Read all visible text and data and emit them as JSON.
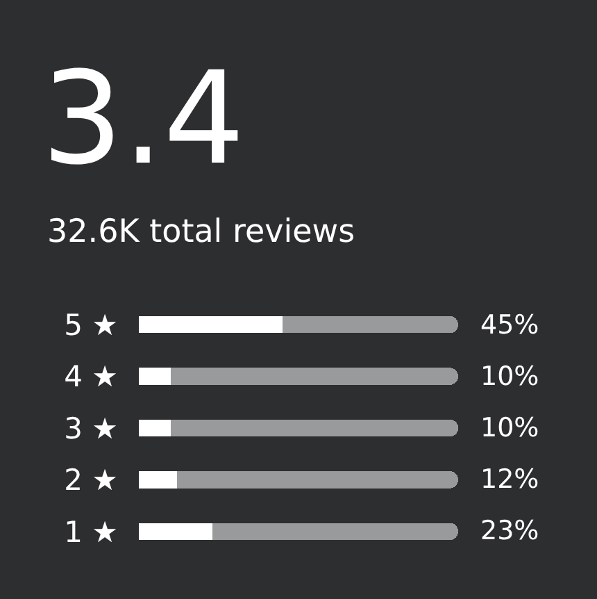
{
  "chart_data": {
    "type": "bar",
    "orientation": "horizontal",
    "stacked": true,
    "title": "3.4",
    "subtitle": "32.6K total reviews",
    "categories": [
      "5 ★",
      "4 ★",
      "3 ★",
      "2 ★",
      "1 ★"
    ],
    "series": [
      {
        "color": "#ffffff",
        "values": [
          45,
          10,
          10,
          12,
          23
        ],
        "value_labels": [
          "45%",
          "10%",
          "10%",
          "12%",
          "23%"
        ]
      },
      {
        "color": "#999a9b",
        "values": [
          55,
          90,
          90,
          88,
          77
        ]
      }
    ],
    "xlim": [
      0,
      100
    ],
    "tick_labels": "y",
    "grid": false
  }
}
